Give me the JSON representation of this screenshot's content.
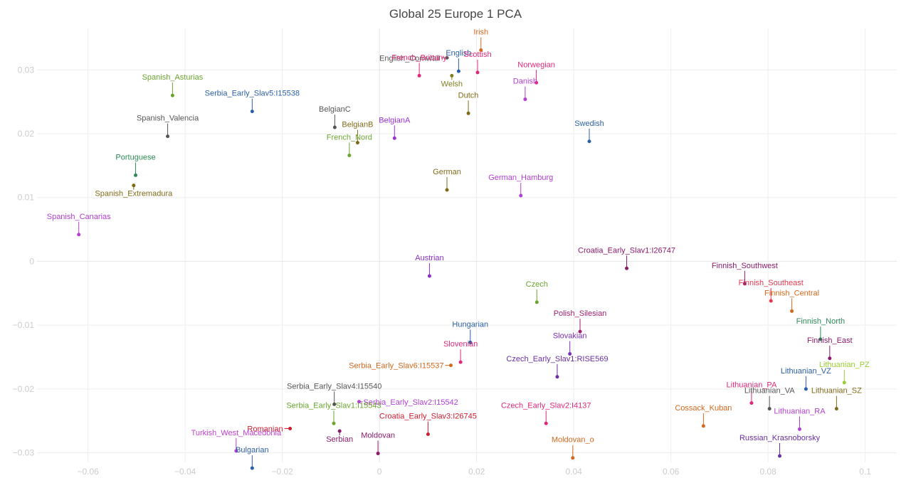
{
  "chart_data": {
    "type": "scatter",
    "title": "Global 25 Europe 1 PCA",
    "xlabel": "",
    "ylabel": "",
    "xlim": [
      -0.0705,
      0.1065
    ],
    "ylim": [
      -0.0315,
      0.0365
    ],
    "x_ticks": [
      -0.06,
      -0.04,
      -0.02,
      0,
      0.02,
      0.04,
      0.06,
      0.08,
      0.1
    ],
    "x_tick_labels": [
      "−0.06",
      "−0.04",
      "−0.02",
      "0",
      "0.02",
      "0.04",
      "0.06",
      "0.08",
      "0.1"
    ],
    "y_ticks": [
      -0.03,
      -0.02,
      -0.01,
      0,
      0.01,
      0.02,
      0.03
    ],
    "y_tick_labels": [
      "−0.03",
      "−0.02",
      "−0.01",
      "0",
      "0.01",
      "0.02",
      "0.03"
    ],
    "grid": true,
    "legend": "none",
    "points": [
      {
        "label": "Irish",
        "x": 0.0209,
        "y": 0.0331,
        "color": "#d2691e",
        "anchor": "top"
      },
      {
        "label": "English_Cornwall",
        "x": 0.0139,
        "y": 0.0319,
        "color": "#555555",
        "anchor": "left"
      },
      {
        "label": "English",
        "x": 0.0163,
        "y": 0.0298,
        "color": "#2b5fa8",
        "anchor": "top"
      },
      {
        "label": "Scottish",
        "x": 0.0202,
        "y": 0.0296,
        "color": "#e0287a",
        "anchor": "top"
      },
      {
        "label": "French_Brittany",
        "x": 0.0082,
        "y": 0.0291,
        "color": "#e0287a",
        "anchor": "top"
      },
      {
        "label": "Welsh",
        "x": 0.0149,
        "y": 0.0291,
        "color": "#7f7f22",
        "anchor": "bottom"
      },
      {
        "label": "Norwegian",
        "x": 0.0323,
        "y": 0.028,
        "color": "#e0287a",
        "anchor": "top"
      },
      {
        "label": "Spanish_Asturias",
        "x": -0.0426,
        "y": 0.026,
        "color": "#6ba52f",
        "anchor": "top"
      },
      {
        "label": "Danish",
        "x": 0.03,
        "y": 0.0254,
        "color": "#b23fd1",
        "anchor": "top"
      },
      {
        "label": "Serbia_Early_Slav5:I15538",
        "x": -0.0262,
        "y": 0.0235,
        "color": "#2b5fa8",
        "anchor": "top"
      },
      {
        "label": "Dutch",
        "x": 0.0183,
        "y": 0.0232,
        "color": "#7f6a1a",
        "anchor": "top"
      },
      {
        "label": "BelgianC",
        "x": -0.0092,
        "y": 0.021,
        "color": "#555555",
        "anchor": "top"
      },
      {
        "label": "Spanish_Valencia",
        "x": -0.0436,
        "y": 0.0196,
        "color": "#555555",
        "anchor": "top"
      },
      {
        "label": "BelgianA",
        "x": 0.0031,
        "y": 0.0193,
        "color": "#9b30d0",
        "anchor": "top"
      },
      {
        "label": "Swedish",
        "x": 0.0432,
        "y": 0.0188,
        "color": "#2b5fa8",
        "anchor": "top"
      },
      {
        "label": "BelgianB",
        "x": -0.0045,
        "y": 0.0186,
        "color": "#7f6a1a",
        "anchor": "top"
      },
      {
        "label": "French_Nord",
        "x": -0.0062,
        "y": 0.0166,
        "color": "#6ba52f",
        "anchor": "top"
      },
      {
        "label": "Portuguese",
        "x": -0.0502,
        "y": 0.0135,
        "color": "#2e8b57",
        "anchor": "top"
      },
      {
        "label": "Spanish_Extremadura",
        "x": -0.0506,
        "y": 0.0119,
        "color": "#7f6a1a",
        "anchor": "bottom"
      },
      {
        "label": "German",
        "x": 0.0139,
        "y": 0.0112,
        "color": "#7f6a1a",
        "anchor": "top"
      },
      {
        "label": "German_Hamburg",
        "x": 0.0291,
        "y": 0.0103,
        "color": "#b23fd1",
        "anchor": "top"
      },
      {
        "label": "Spanish_Canarias",
        "x": -0.0619,
        "y": 0.0042,
        "color": "#b23fd1",
        "anchor": "top"
      },
      {
        "label": "Croatia_Early_Slav1:I26747",
        "x": 0.0509,
        "y": -0.0011,
        "color": "#8b1a6b",
        "anchor": "top"
      },
      {
        "label": "Austrian",
        "x": 0.0103,
        "y": -0.0023,
        "color": "#8b2fc9",
        "anchor": "top"
      },
      {
        "label": "Finnish_Southwest",
        "x": 0.0752,
        "y": -0.0035,
        "color": "#8b1a6b",
        "anchor": "top"
      },
      {
        "label": "Finnish_Southeast",
        "x": 0.0806,
        "y": -0.0062,
        "color": "#e63950",
        "anchor": "top"
      },
      {
        "label": "Czech",
        "x": 0.0324,
        "y": -0.0064,
        "color": "#6ba52f",
        "anchor": "top"
      },
      {
        "label": "Finnish_Central",
        "x": 0.0849,
        "y": -0.0078,
        "color": "#d2691e",
        "anchor": "top"
      },
      {
        "label": "Polish_Silesian",
        "x": 0.0413,
        "y": -0.011,
        "color": "#a01f6f",
        "anchor": "top"
      },
      {
        "label": "Finnish_North",
        "x": 0.0908,
        "y": -0.0122,
        "color": "#2e8b57",
        "anchor": "top"
      },
      {
        "label": "Hungarian",
        "x": 0.0187,
        "y": -0.0127,
        "color": "#2b5fa8",
        "anchor": "top"
      },
      {
        "label": "Finnish_East",
        "x": 0.0927,
        "y": -0.0152,
        "color": "#8b1a6b",
        "anchor": "top"
      },
      {
        "label": "Slovakian",
        "x": 0.0392,
        "y": -0.0145,
        "color": "#7b2fb8",
        "anchor": "top"
      },
      {
        "label": "Slovenian",
        "x": 0.0167,
        "y": -0.0158,
        "color": "#e0287a",
        "anchor": "top"
      },
      {
        "label": "Serbia_Early_Slav6:I15537",
        "x": 0.0147,
        "y": -0.0163,
        "color": "#d2691e",
        "anchor": "left"
      },
      {
        "label": "Czech_Early_Slav1:RISE569",
        "x": 0.0366,
        "y": -0.0181,
        "color": "#6a2fa0",
        "anchor": "top"
      },
      {
        "label": "Lithuanian_PZ",
        "x": 0.0957,
        "y": -0.019,
        "color": "#9acd32",
        "anchor": "top"
      },
      {
        "label": "Lithuanian_VZ",
        "x": 0.0878,
        "y": -0.02,
        "color": "#2b5fa8",
        "anchor": "top"
      },
      {
        "label": "Lithuanian_PA",
        "x": 0.0766,
        "y": -0.0222,
        "color": "#e0287a",
        "anchor": "top"
      },
      {
        "label": "Lithuanian_VA",
        "x": 0.0803,
        "y": -0.0231,
        "color": "#555555",
        "anchor": "top"
      },
      {
        "label": "Lithuanian_SZ",
        "x": 0.0941,
        "y": -0.0231,
        "color": "#7f6a1a",
        "anchor": "top"
      },
      {
        "label": "Serbia_Early_Slav4:I15540",
        "x": -0.0093,
        "y": -0.0224,
        "color": "#555555",
        "anchor": "top"
      },
      {
        "label": "Serbia_Early_Slav2:I15542",
        "x": -0.0042,
        "y": -0.022,
        "color": "#b23fd1",
        "anchor": "right"
      },
      {
        "label": "Czech_Early_Slav2:I4137",
        "x": 0.0343,
        "y": -0.0254,
        "color": "#e0287a",
        "anchor": "top"
      },
      {
        "label": "Serbia_Early_Slav1:I15543",
        "x": -0.0094,
        "y": -0.0254,
        "color": "#6ba52f",
        "anchor": "top"
      },
      {
        "label": "Cossack_Kuban",
        "x": 0.0667,
        "y": -0.0258,
        "color": "#d2691e",
        "anchor": "top"
      },
      {
        "label": "Lithuanian_RA",
        "x": 0.0865,
        "y": -0.0263,
        "color": "#b23fd1",
        "anchor": "top"
      },
      {
        "label": "Romanian",
        "x": -0.0184,
        "y": -0.0262,
        "color": "#d01c2e",
        "anchor": "left"
      },
      {
        "label": "Croatia_Early_Slav3:I26745",
        "x": 0.01,
        "y": -0.0271,
        "color": "#d01c2e",
        "anchor": "top"
      },
      {
        "label": "Serbian",
        "x": -0.0082,
        "y": -0.0266,
        "color": "#8b1a6b",
        "anchor": "bottom"
      },
      {
        "label": "Turkish_West_Macedonia",
        "x": -0.0295,
        "y": -0.0297,
        "color": "#c03fd1",
        "anchor": "top"
      },
      {
        "label": "Moldovan",
        "x": -0.0003,
        "y": -0.0301,
        "color": "#8b1a6b",
        "anchor": "top"
      },
      {
        "label": "Moldovan_o",
        "x": 0.0398,
        "y": -0.0308,
        "color": "#d2691e",
        "anchor": "top"
      },
      {
        "label": "Russian_Krasnoborsky",
        "x": 0.0824,
        "y": -0.0305,
        "color": "#6a2fa0",
        "anchor": "top"
      },
      {
        "label": "Bulgarian",
        "x": -0.0262,
        "y": -0.0324,
        "color": "#2b5fa8",
        "anchor": "top"
      }
    ]
  }
}
